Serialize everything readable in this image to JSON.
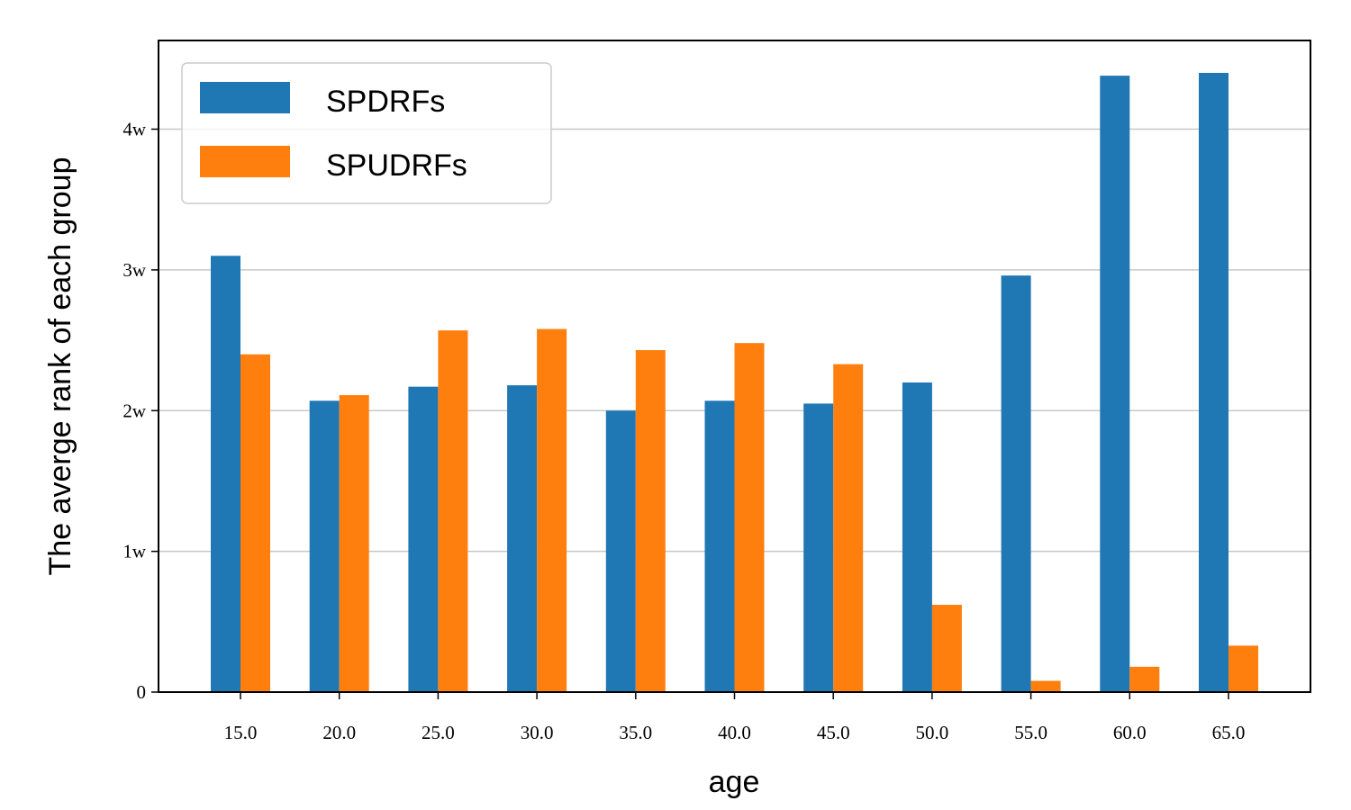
{
  "chart_data": {
    "type": "bar",
    "xlabel": "age",
    "ylabel": "The averge rank of each group",
    "categories": [
      "15.0",
      "20.0",
      "25.0",
      "30.0",
      "35.0",
      "40.0",
      "45.0",
      "50.0",
      "55.0",
      "60.0",
      "65.0"
    ],
    "series": [
      {
        "name": "SPDRFs",
        "color": "#1f77b4",
        "values": [
          31000,
          20700,
          21700,
          21800,
          20000,
          20700,
          20500,
          22000,
          29600,
          43800,
          44000
        ]
      },
      {
        "name": "SPUDRFs",
        "color": "#ff7f0e",
        "values": [
          24000,
          21100,
          25700,
          25800,
          24300,
          24800,
          23300,
          6200,
          800,
          1800,
          3300
        ]
      }
    ],
    "ylim": [
      0,
      46300
    ],
    "yticks": [
      {
        "value": 0,
        "label": "0"
      },
      {
        "value": 10000,
        "label": "1w"
      },
      {
        "value": 20000,
        "label": "2w"
      },
      {
        "value": 30000,
        "label": "3w"
      },
      {
        "value": 40000,
        "label": "4w"
      }
    ],
    "grid": "y",
    "legend_position": "top-left"
  }
}
